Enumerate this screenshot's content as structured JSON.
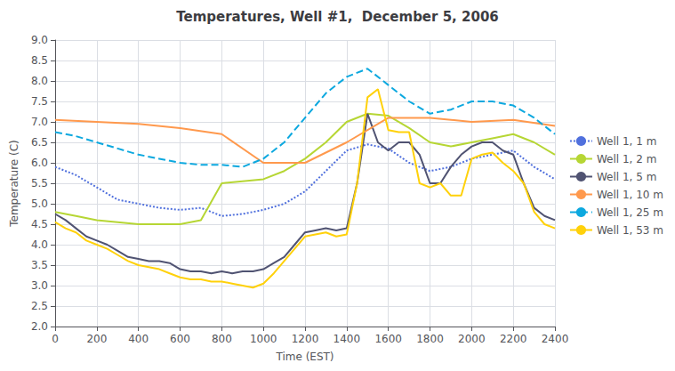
{
  "chart_data": {
    "type": "line",
    "title": "Temperatures, Well #1,  December 5, 2006",
    "xlabel": "Time (EST)",
    "ylabel": "Temperature (C)",
    "xlim": [
      0,
      2400
    ],
    "ylim": [
      2.0,
      9.0
    ],
    "xticks": [
      0,
      200,
      400,
      600,
      800,
      1000,
      1200,
      1400,
      1600,
      1800,
      2000,
      2200,
      2400
    ],
    "yticks": [
      {
        "value": 2.0,
        "label": "2.0"
      },
      2.5,
      {
        "value": 3.0,
        "label": "3.0"
      },
      3.5,
      {
        "value": 4.0,
        "label": "4.0"
      },
      4.5,
      {
        "value": 5.0,
        "label": "5.0"
      },
      5.5,
      {
        "value": 6.0,
        "label": "6.0"
      },
      6.5,
      {
        "value": 7.0,
        "label": "7.0"
      },
      7.5,
      {
        "value": 8.0,
        "label": "8.0"
      },
      8.5,
      {
        "value": 9.0,
        "label": "9.0"
      }
    ],
    "grid": true,
    "legend": "right",
    "series": [
      {
        "name": "Well 1, 1 m",
        "line_style": "dotted",
        "x": [
          0,
          100,
          200,
          300,
          400,
          500,
          600,
          700,
          800,
          900,
          1000,
          1100,
          1200,
          1300,
          1400,
          1500,
          1600,
          1700,
          1800,
          1900,
          2000,
          2100,
          2200,
          2300,
          2400
        ],
        "values": [
          5.9,
          5.7,
          5.4,
          5.1,
          5.0,
          4.9,
          4.85,
          4.9,
          4.7,
          4.75,
          4.85,
          5.0,
          5.3,
          5.8,
          6.3,
          6.45,
          6.35,
          6.0,
          5.8,
          5.9,
          6.1,
          6.2,
          6.3,
          5.9,
          5.6
        ]
      },
      {
        "name": "Well 1, 2 m",
        "line_style": "solid",
        "x": [
          0,
          100,
          200,
          300,
          400,
          500,
          600,
          700,
          800,
          900,
          1000,
          1100,
          1200,
          1300,
          1400,
          1500,
          1600,
          1700,
          1800,
          1900,
          2000,
          2100,
          2200,
          2300,
          2400
        ],
        "values": [
          4.8,
          4.7,
          4.6,
          4.55,
          4.5,
          4.5,
          4.5,
          4.6,
          5.5,
          5.55,
          5.6,
          5.8,
          6.1,
          6.5,
          7.0,
          7.2,
          7.15,
          6.85,
          6.5,
          6.4,
          6.5,
          6.6,
          6.7,
          6.5,
          6.2
        ]
      },
      {
        "name": "Well 1, 5 m",
        "line_style": "solid",
        "x": [
          0,
          50,
          100,
          150,
          200,
          250,
          300,
          350,
          400,
          450,
          500,
          550,
          600,
          650,
          700,
          750,
          800,
          850,
          900,
          950,
          1000,
          1050,
          1100,
          1150,
          1200,
          1250,
          1300,
          1350,
          1400,
          1450,
          1500,
          1550,
          1600,
          1650,
          1700,
          1750,
          1800,
          1850,
          1900,
          1950,
          2000,
          2050,
          2100,
          2150,
          2200,
          2250,
          2300,
          2350,
          2400
        ],
        "values": [
          4.75,
          4.6,
          4.4,
          4.2,
          4.1,
          4.0,
          3.85,
          3.7,
          3.65,
          3.6,
          3.6,
          3.55,
          3.4,
          3.35,
          3.35,
          3.3,
          3.35,
          3.3,
          3.35,
          3.35,
          3.4,
          3.55,
          3.7,
          4.0,
          4.3,
          4.35,
          4.4,
          4.35,
          4.4,
          5.5,
          7.2,
          6.5,
          6.3,
          6.5,
          6.5,
          6.2,
          5.5,
          5.5,
          5.9,
          6.2,
          6.4,
          6.5,
          6.5,
          6.3,
          6.2,
          5.5,
          4.9,
          4.7,
          4.6
        ]
      },
      {
        "name": "Well 1, 10 m",
        "line_style": "solid",
        "x": [
          0,
          200,
          400,
          600,
          800,
          1000,
          1200,
          1400,
          1600,
          1800,
          2000,
          2200,
          2400
        ],
        "values": [
          7.05,
          7.0,
          6.95,
          6.85,
          6.7,
          6.0,
          6.0,
          6.5,
          7.1,
          7.1,
          7.0,
          7.05,
          6.9
        ]
      },
      {
        "name": "Well 1, 25 m",
        "line_style": "dashed",
        "x": [
          0,
          100,
          200,
          300,
          400,
          500,
          600,
          700,
          800,
          900,
          1000,
          1100,
          1200,
          1300,
          1400,
          1500,
          1600,
          1700,
          1800,
          1900,
          2000,
          2100,
          2200,
          2300,
          2400
        ],
        "values": [
          6.75,
          6.65,
          6.5,
          6.35,
          6.2,
          6.1,
          6.0,
          5.95,
          5.95,
          5.9,
          6.1,
          6.5,
          7.1,
          7.7,
          8.1,
          8.3,
          7.9,
          7.5,
          7.2,
          7.3,
          7.5,
          7.5,
          7.4,
          7.1,
          6.7
        ]
      },
      {
        "name": "Well 1, 53 m",
        "line_style": "solid",
        "x": [
          0,
          50,
          100,
          150,
          200,
          250,
          300,
          350,
          400,
          450,
          500,
          550,
          600,
          650,
          700,
          750,
          800,
          850,
          900,
          950,
          1000,
          1050,
          1100,
          1150,
          1200,
          1250,
          1300,
          1350,
          1400,
          1450,
          1500,
          1550,
          1600,
          1650,
          1700,
          1750,
          1800,
          1850,
          1900,
          1950,
          2000,
          2050,
          2100,
          2150,
          2200,
          2250,
          2300,
          2350,
          2400
        ],
        "values": [
          4.55,
          4.4,
          4.3,
          4.1,
          4.0,
          3.9,
          3.75,
          3.6,
          3.5,
          3.45,
          3.4,
          3.3,
          3.2,
          3.15,
          3.15,
          3.1,
          3.1,
          3.05,
          3.0,
          2.95,
          3.05,
          3.3,
          3.6,
          3.9,
          4.2,
          4.25,
          4.3,
          4.2,
          4.25,
          5.5,
          7.6,
          7.8,
          6.8,
          6.75,
          6.75,
          5.5,
          5.4,
          5.5,
          5.2,
          5.2,
          6.1,
          6.2,
          6.25,
          6.0,
          5.8,
          5.5,
          4.8,
          4.5,
          4.4
        ]
      }
    ]
  }
}
